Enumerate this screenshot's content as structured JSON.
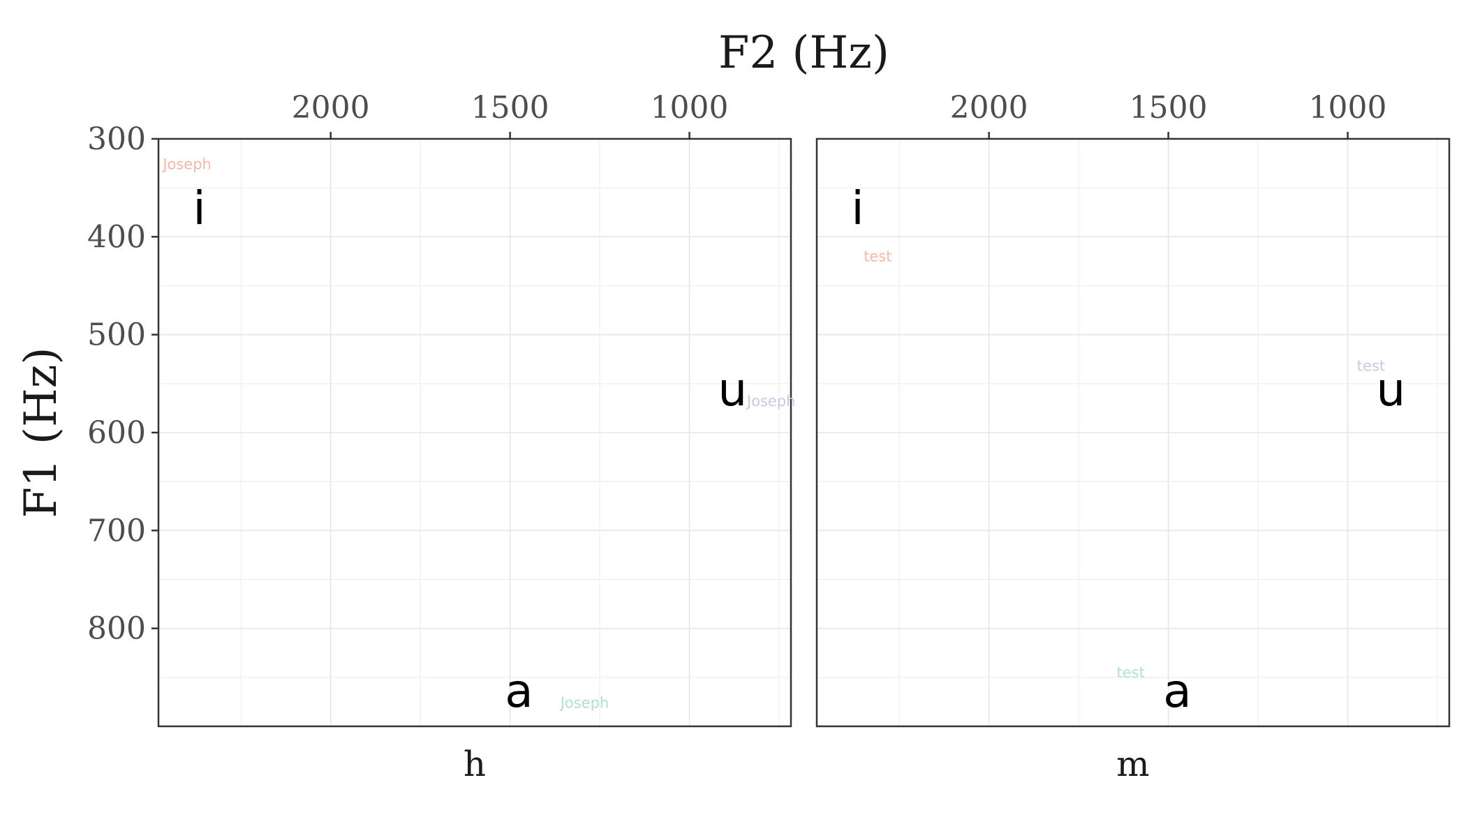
{
  "chart_data": {
    "type": "scatter",
    "title": "",
    "xlabel": "F2 (Hz)",
    "ylabel": "F1 (Hz)",
    "x_axis_position": "top",
    "x_reversed": true,
    "y_reversed": true,
    "xlim": [
      2480,
      717
    ],
    "ylim": [
      300,
      900
    ],
    "x_ticks": [
      2000,
      1500,
      1000
    ],
    "x_minor_ticks": [
      2250,
      1750,
      1250,
      750
    ],
    "y_ticks": [
      300,
      400,
      500,
      600,
      700,
      800
    ],
    "y_minor_ticks": [
      350,
      450,
      550,
      650,
      750,
      850
    ],
    "grid": true,
    "legend": "none",
    "colors": {
      "i": "#f4b9a6",
      "u": "#c5cbe6",
      "a": "#b3e0cc"
    },
    "panels": [
      {
        "strip": "h",
        "vowels": [
          {
            "label": "i",
            "f2": 2366,
            "f1": 370
          },
          {
            "label": "u",
            "f2": 880,
            "f1": 555
          },
          {
            "label": "a",
            "f2": 1475,
            "f1": 863
          }
        ],
        "speaker_labels": [
          {
            "text": "Joseph",
            "vowel": "i",
            "f2": 2400,
            "f1": 326
          },
          {
            "text": "Joseph",
            "vowel": "u",
            "f2": 772,
            "f1": 568
          },
          {
            "text": "Joseph",
            "vowel": "a",
            "f2": 1292,
            "f1": 876
          }
        ]
      },
      {
        "strip": "m",
        "vowels": [
          {
            "label": "i",
            "f2": 2366,
            "f1": 370
          },
          {
            "label": "u",
            "f2": 880,
            "f1": 555
          },
          {
            "label": "a",
            "f2": 1475,
            "f1": 863
          }
        ],
        "speaker_labels": [
          {
            "text": "test",
            "vowel": "i",
            "f2": 2310,
            "f1": 420
          },
          {
            "text": "test",
            "vowel": "u",
            "f2": 935,
            "f1": 532
          },
          {
            "text": "test",
            "vowel": "a",
            "f2": 1605,
            "f1": 845
          }
        ]
      }
    ]
  }
}
